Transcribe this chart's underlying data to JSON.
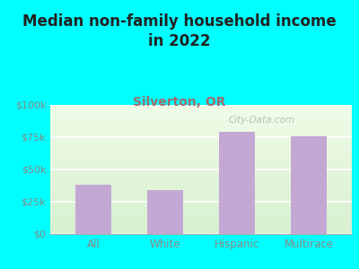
{
  "title": "Median non-family household income\nin 2022",
  "subtitle": "Silverton, OR",
  "categories": [
    "All",
    "White",
    "Hispanic",
    "Multirace"
  ],
  "values": [
    38000,
    34000,
    79000,
    76000
  ],
  "bar_color": "#c4a8d4",
  "background_outer": "#00FFFF",
  "background_inner_gradient_top": "#d8f0d0",
  "background_inner_gradient_bottom": "#f0fce8",
  "title_color": "#222222",
  "subtitle_color": "#9e6b6b",
  "tick_label_color": "#888888",
  "yticks": [
    0,
    25000,
    50000,
    75000,
    100000
  ],
  "ytick_labels": [
    "$0",
    "$25k",
    "$50k",
    "$75k",
    "$100k"
  ],
  "ylim": [
    0,
    100000
  ],
  "watermark": "City-Data.com",
  "title_fontsize": 12,
  "subtitle_fontsize": 10
}
